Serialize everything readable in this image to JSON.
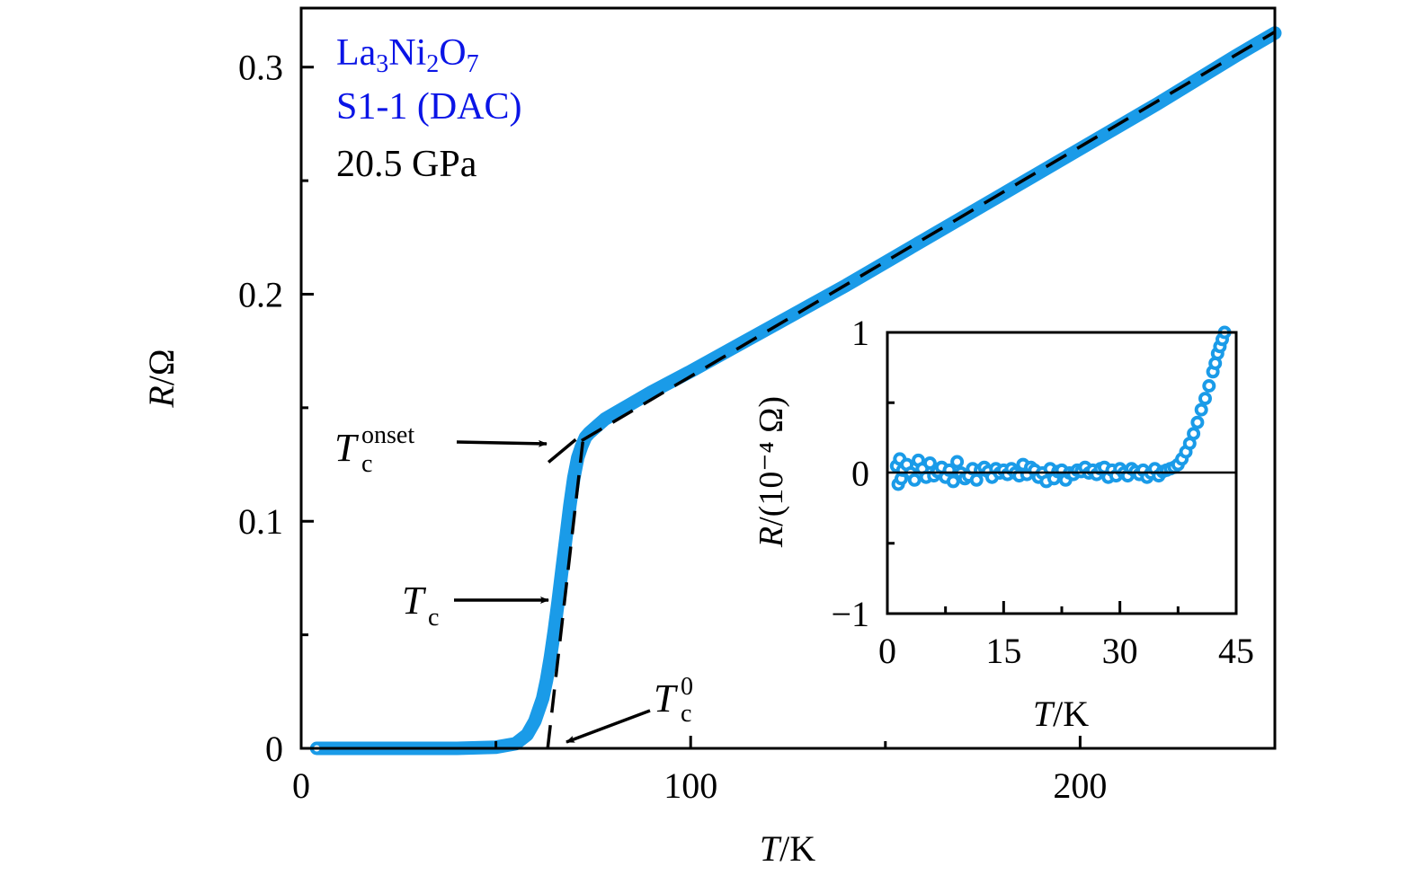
{
  "chart_data": [
    {
      "id": "main",
      "type": "line",
      "title": "",
      "xlabel": {
        "var": "T",
        "unit": "K"
      },
      "ylabel": {
        "var": "R",
        "unit": "Ω"
      },
      "xlim": [
        0,
        250
      ],
      "ylim": [
        0,
        0.326
      ],
      "x_ticks": [
        0,
        100,
        200
      ],
      "x_tick_labels": [
        "0",
        "100",
        "200"
      ],
      "x_minor_ticks": [
        50,
        150
      ],
      "y_ticks": [
        0,
        0.1,
        0.2,
        0.3
      ],
      "y_tick_labels": [
        "0",
        "0.1",
        "0.2",
        "0.3"
      ],
      "y_minor_ticks": [
        0.05,
        0.15,
        0.25
      ],
      "grid": false,
      "series": [
        {
          "name": "La3Ni2O7 S1-1 (DAC) 20.5 GPa",
          "color": "#1a9be8",
          "style": "thick-line",
          "x": [
            4,
            10,
            20,
            30,
            40,
            50,
            55,
            58,
            60,
            62,
            63,
            64,
            65,
            66,
            67,
            68,
            69,
            70,
            71,
            72,
            73,
            74,
            76,
            78,
            80,
            85,
            90,
            100,
            120,
            140,
            160,
            180,
            200,
            220,
            240,
            250
          ],
          "y": [
            0,
            0,
            0,
            0,
            0,
            0.0005,
            0.002,
            0.006,
            0.012,
            0.022,
            0.03,
            0.04,
            0.052,
            0.065,
            0.079,
            0.093,
            0.107,
            0.119,
            0.128,
            0.133,
            0.137,
            0.139,
            0.142,
            0.145,
            0.147,
            0.152,
            0.157,
            0.166,
            0.185,
            0.204,
            0.224,
            0.244,
            0.264,
            0.284,
            0.305,
            0.315
          ]
        }
      ],
      "fits": [
        {
          "name": "normal-state linear fit",
          "style": "dashed",
          "color": "#000000",
          "x": [
            72,
            250
          ],
          "y": [
            0.1355,
            0.3155
          ]
        },
        {
          "name": "transition linear fit",
          "style": "dashed",
          "color": "#000000",
          "x": [
            63.3,
            72.3
          ],
          "y": [
            0,
            0.135
          ]
        },
        {
          "name": "onset marker",
          "style": "solid",
          "color": "#000000",
          "x": [
            63.5,
            70.5
          ],
          "y": [
            0.126,
            0.136
          ]
        }
      ],
      "annotations": [
        {
          "id": "tc-onset",
          "text_main": "T",
          "text_sub": "c",
          "text_sup": "onset",
          "arrow_to": [
            63,
            0.134
          ]
        },
        {
          "id": "tc",
          "text_main": "T",
          "text_sub": "c",
          "text_sup": "",
          "arrow_to": [
            64.5,
            0.065
          ]
        },
        {
          "id": "tc-zero",
          "text_main": "T",
          "text_sub": "c",
          "text_sup": "0",
          "arrow_to": [
            68,
            0.003
          ]
        }
      ],
      "legend_text": [
        {
          "text": "La",
          "sub1": "3",
          "mid": "Ni",
          "sub2": "2",
          "end": "O",
          "sub3": "7",
          "color": "#0a14e6"
        },
        {
          "text": "S1-1 (DAC)",
          "color": "#0a14e6"
        },
        {
          "text": "20.5 GPa",
          "color": "#000000"
        }
      ],
      "legend_position": "top-left"
    },
    {
      "id": "inset",
      "type": "scatter",
      "title": "",
      "xlabel": {
        "var": "T",
        "unit": "K"
      },
      "ylabel": {
        "var": "R",
        "unit": "(10⁻⁴ Ω)"
      },
      "xlim": [
        0,
        45
      ],
      "ylim": [
        -1,
        1
      ],
      "x_ticks": [
        0,
        15,
        30,
        45
      ],
      "x_tick_labels": [
        "0",
        "15",
        "30",
        "45"
      ],
      "x_minor_ticks": [
        7.5,
        22.5,
        37.5
      ],
      "y_ticks": [
        -1,
        0,
        1
      ],
      "y_tick_labels": [
        "−1",
        "0",
        "1"
      ],
      "y_minor_ticks": [
        -0.5,
        0.5
      ],
      "zero_line": true,
      "grid": false,
      "series": [
        {
          "name": "low-T resistance",
          "color": "#1a9be8",
          "marker": "open-circle",
          "x": [
            1.2,
            1.4,
            1.6,
            1.8,
            2.0,
            2.5,
            3.0,
            3.5,
            4.0,
            4.5,
            5.0,
            5.5,
            6.0,
            6.5,
            7.0,
            7.5,
            8.0,
            8.5,
            9.0,
            9.5,
            10.0,
            10.5,
            11.0,
            11.5,
            12.0,
            12.5,
            13.0,
            13.5,
            14.0,
            14.5,
            15.0,
            15.5,
            16.0,
            16.5,
            17.0,
            17.5,
            18.0,
            18.5,
            19.0,
            19.5,
            20.0,
            20.5,
            21.0,
            21.5,
            22.0,
            22.5,
            23.0,
            23.5,
            24.0,
            24.5,
            25.0,
            25.5,
            26.0,
            26.5,
            27.0,
            27.5,
            28.0,
            28.5,
            29.0,
            29.5,
            30.0,
            30.5,
            31.0,
            31.5,
            32.0,
            32.5,
            33.0,
            33.5,
            34.0,
            34.5,
            35.0,
            35.5,
            36.0,
            36.5,
            37.0,
            37.5,
            38.0,
            38.5,
            39.0,
            39.5,
            40.0,
            40.5,
            41.0,
            41.5,
            42.0,
            42.3,
            42.6,
            42.9,
            43.2,
            43.5
          ],
          "y": [
            0.05,
            -0.08,
            0.1,
            -0.04,
            0.02,
            0.06,
            0.0,
            -0.05,
            0.09,
            0.03,
            -0.03,
            0.07,
            -0.02,
            0.01,
            0.04,
            -0.03,
            0.02,
            -0.06,
            0.08,
            0.0,
            -0.04,
            -0.02,
            0.03,
            -0.05,
            0.02,
            0.04,
            0.01,
            -0.03,
            0.03,
            0.0,
            0.02,
            -0.01,
            0.03,
            0.0,
            -0.02,
            0.06,
            -0.01,
            0.04,
            0.02,
            -0.03,
            0.0,
            -0.06,
            0.03,
            -0.04,
            0.01,
            0.02,
            -0.05,
            0.0,
            -0.01,
            0.02,
            0.01,
            0.04,
            0.0,
            0.02,
            -0.01,
            0.03,
            0.04,
            -0.03,
            0.02,
            -0.02,
            0.03,
            0.0,
            -0.02,
            0.03,
            0.01,
            -0.01,
            0.02,
            -0.03,
            0.0,
            0.03,
            -0.02,
            0.01,
            0.02,
            0.03,
            0.04,
            0.06,
            0.1,
            0.15,
            0.21,
            0.28,
            0.36,
            0.45,
            0.53,
            0.62,
            0.72,
            0.78,
            0.85,
            0.9,
            0.95,
            1.0
          ]
        }
      ]
    }
  ]
}
